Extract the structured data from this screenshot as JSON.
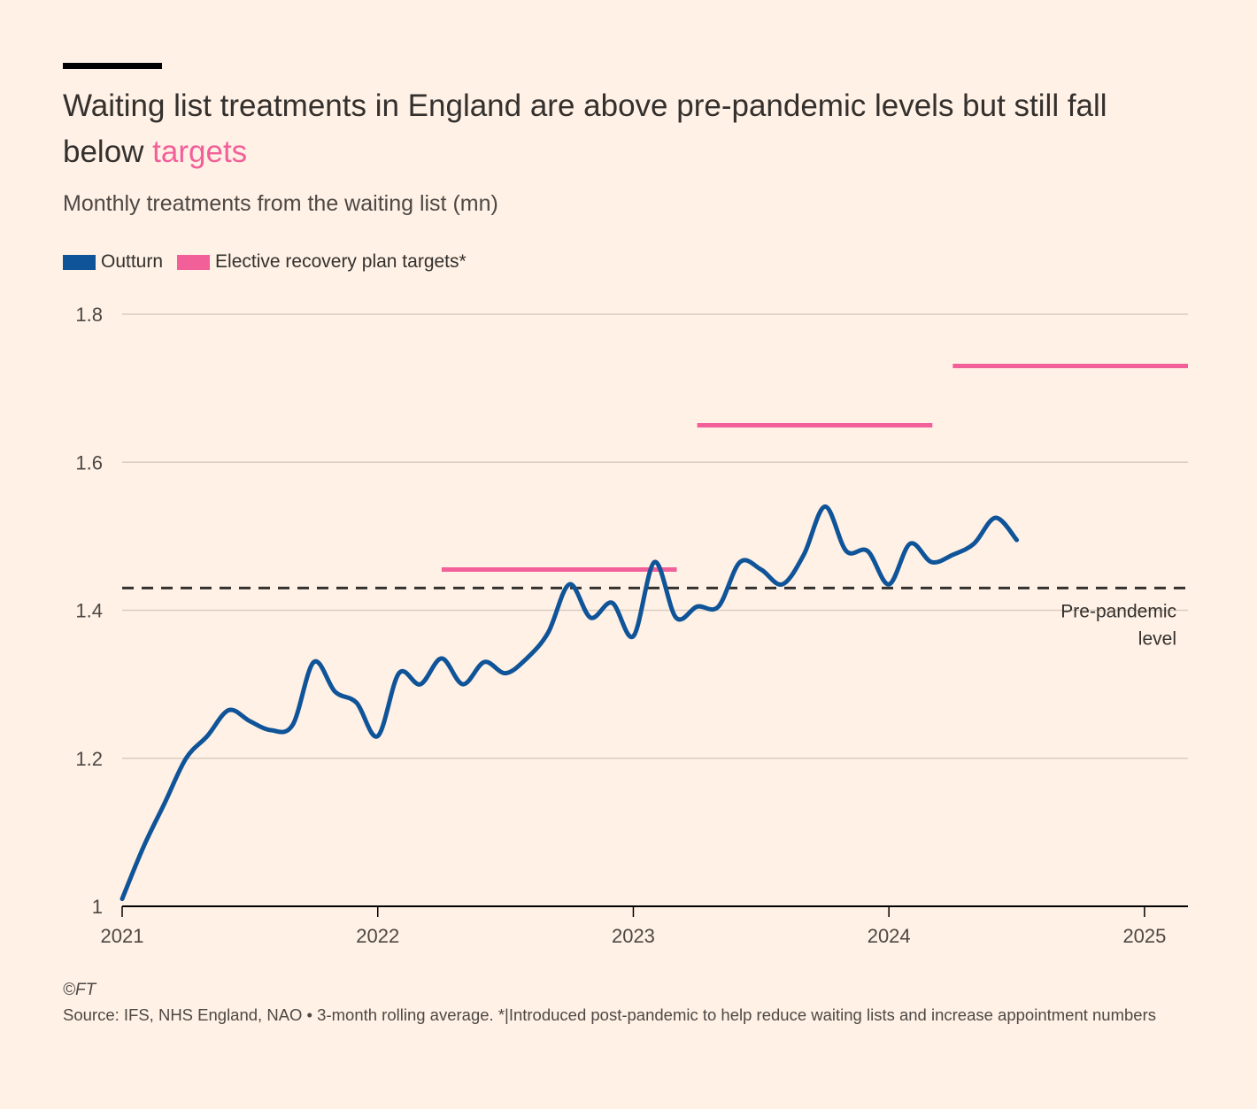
{
  "title_main": "Waiting list treatments in England are above pre-pandemic levels but still fall below ",
  "title_highlight": "targets",
  "footer": {
    "credit": "©FT",
    "source": "Source: IFS, NHS England, NAO • 3-month rolling average. *|Introduced post-pandemic to help reduce waiting lists and increase appointment numbers"
  },
  "colors": {
    "background": "#FFF1E5",
    "outturn": "#0F5499",
    "target": "#F2609A",
    "grid": "#D9CCC1",
    "reference": "#33302E"
  },
  "chart_data": {
    "type": "line",
    "title": "Waiting list treatments in England are above pre-pandemic levels but still fall below targets",
    "subtitle": "Monthly treatments from the waiting list (mn)",
    "xlabel": "",
    "ylabel": "",
    "xlim": [
      2021.0,
      2025.17
    ],
    "ylim": [
      1.0,
      1.8
    ],
    "yticks": [
      1.0,
      1.2,
      1.4,
      1.6,
      1.8
    ],
    "ytick_labels": [
      "1",
      "1.2",
      "1.4",
      "1.6",
      "1.8"
    ],
    "xticks": [
      2021,
      2022,
      2023,
      2024,
      2025
    ],
    "xtick_labels": [
      "2021",
      "2022",
      "2023",
      "2024",
      "2025"
    ],
    "grid": true,
    "legend_position": "top-left",
    "legend": [
      "Outturn",
      "Elective recovery plan targets*"
    ],
    "series": [
      {
        "name": "Outturn",
        "x": [
          2021.0,
          2021.083,
          2021.167,
          2021.25,
          2021.333,
          2021.417,
          2021.5,
          2021.583,
          2021.667,
          2021.75,
          2021.833,
          2021.917,
          2022.0,
          2022.083,
          2022.167,
          2022.25,
          2022.333,
          2022.417,
          2022.5,
          2022.583,
          2022.667,
          2022.75,
          2022.833,
          2022.917,
          2023.0,
          2023.083,
          2023.167,
          2023.25,
          2023.333,
          2023.417,
          2023.5,
          2023.583,
          2023.667,
          2023.75,
          2023.833,
          2023.917,
          2024.0,
          2024.083,
          2024.167,
          2024.25,
          2024.333,
          2024.417,
          2024.5
        ],
        "values": [
          1.01,
          1.08,
          1.14,
          1.2,
          1.23,
          1.265,
          1.25,
          1.238,
          1.245,
          1.33,
          1.29,
          1.275,
          1.23,
          1.315,
          1.3,
          1.335,
          1.3,
          1.33,
          1.315,
          1.335,
          1.37,
          1.435,
          1.39,
          1.41,
          1.365,
          1.465,
          1.39,
          1.405,
          1.405,
          1.465,
          1.455,
          1.435,
          1.475,
          1.54,
          1.48,
          1.48,
          1.435,
          1.49,
          1.465,
          1.475,
          1.49,
          1.525,
          1.495
        ]
      }
    ],
    "targets": {
      "name": "Elective recovery plan targets*",
      "segments": [
        {
          "x_start": 2022.25,
          "x_end": 2023.17,
          "value": 1.455
        },
        {
          "x_start": 2023.25,
          "x_end": 2024.17,
          "value": 1.65
        },
        {
          "x_start": 2024.25,
          "x_end": 2025.17,
          "value": 1.73
        }
      ]
    },
    "reference_line": {
      "value": 1.43,
      "label_lines": [
        "Pre-pandemic",
        "level"
      ]
    }
  }
}
